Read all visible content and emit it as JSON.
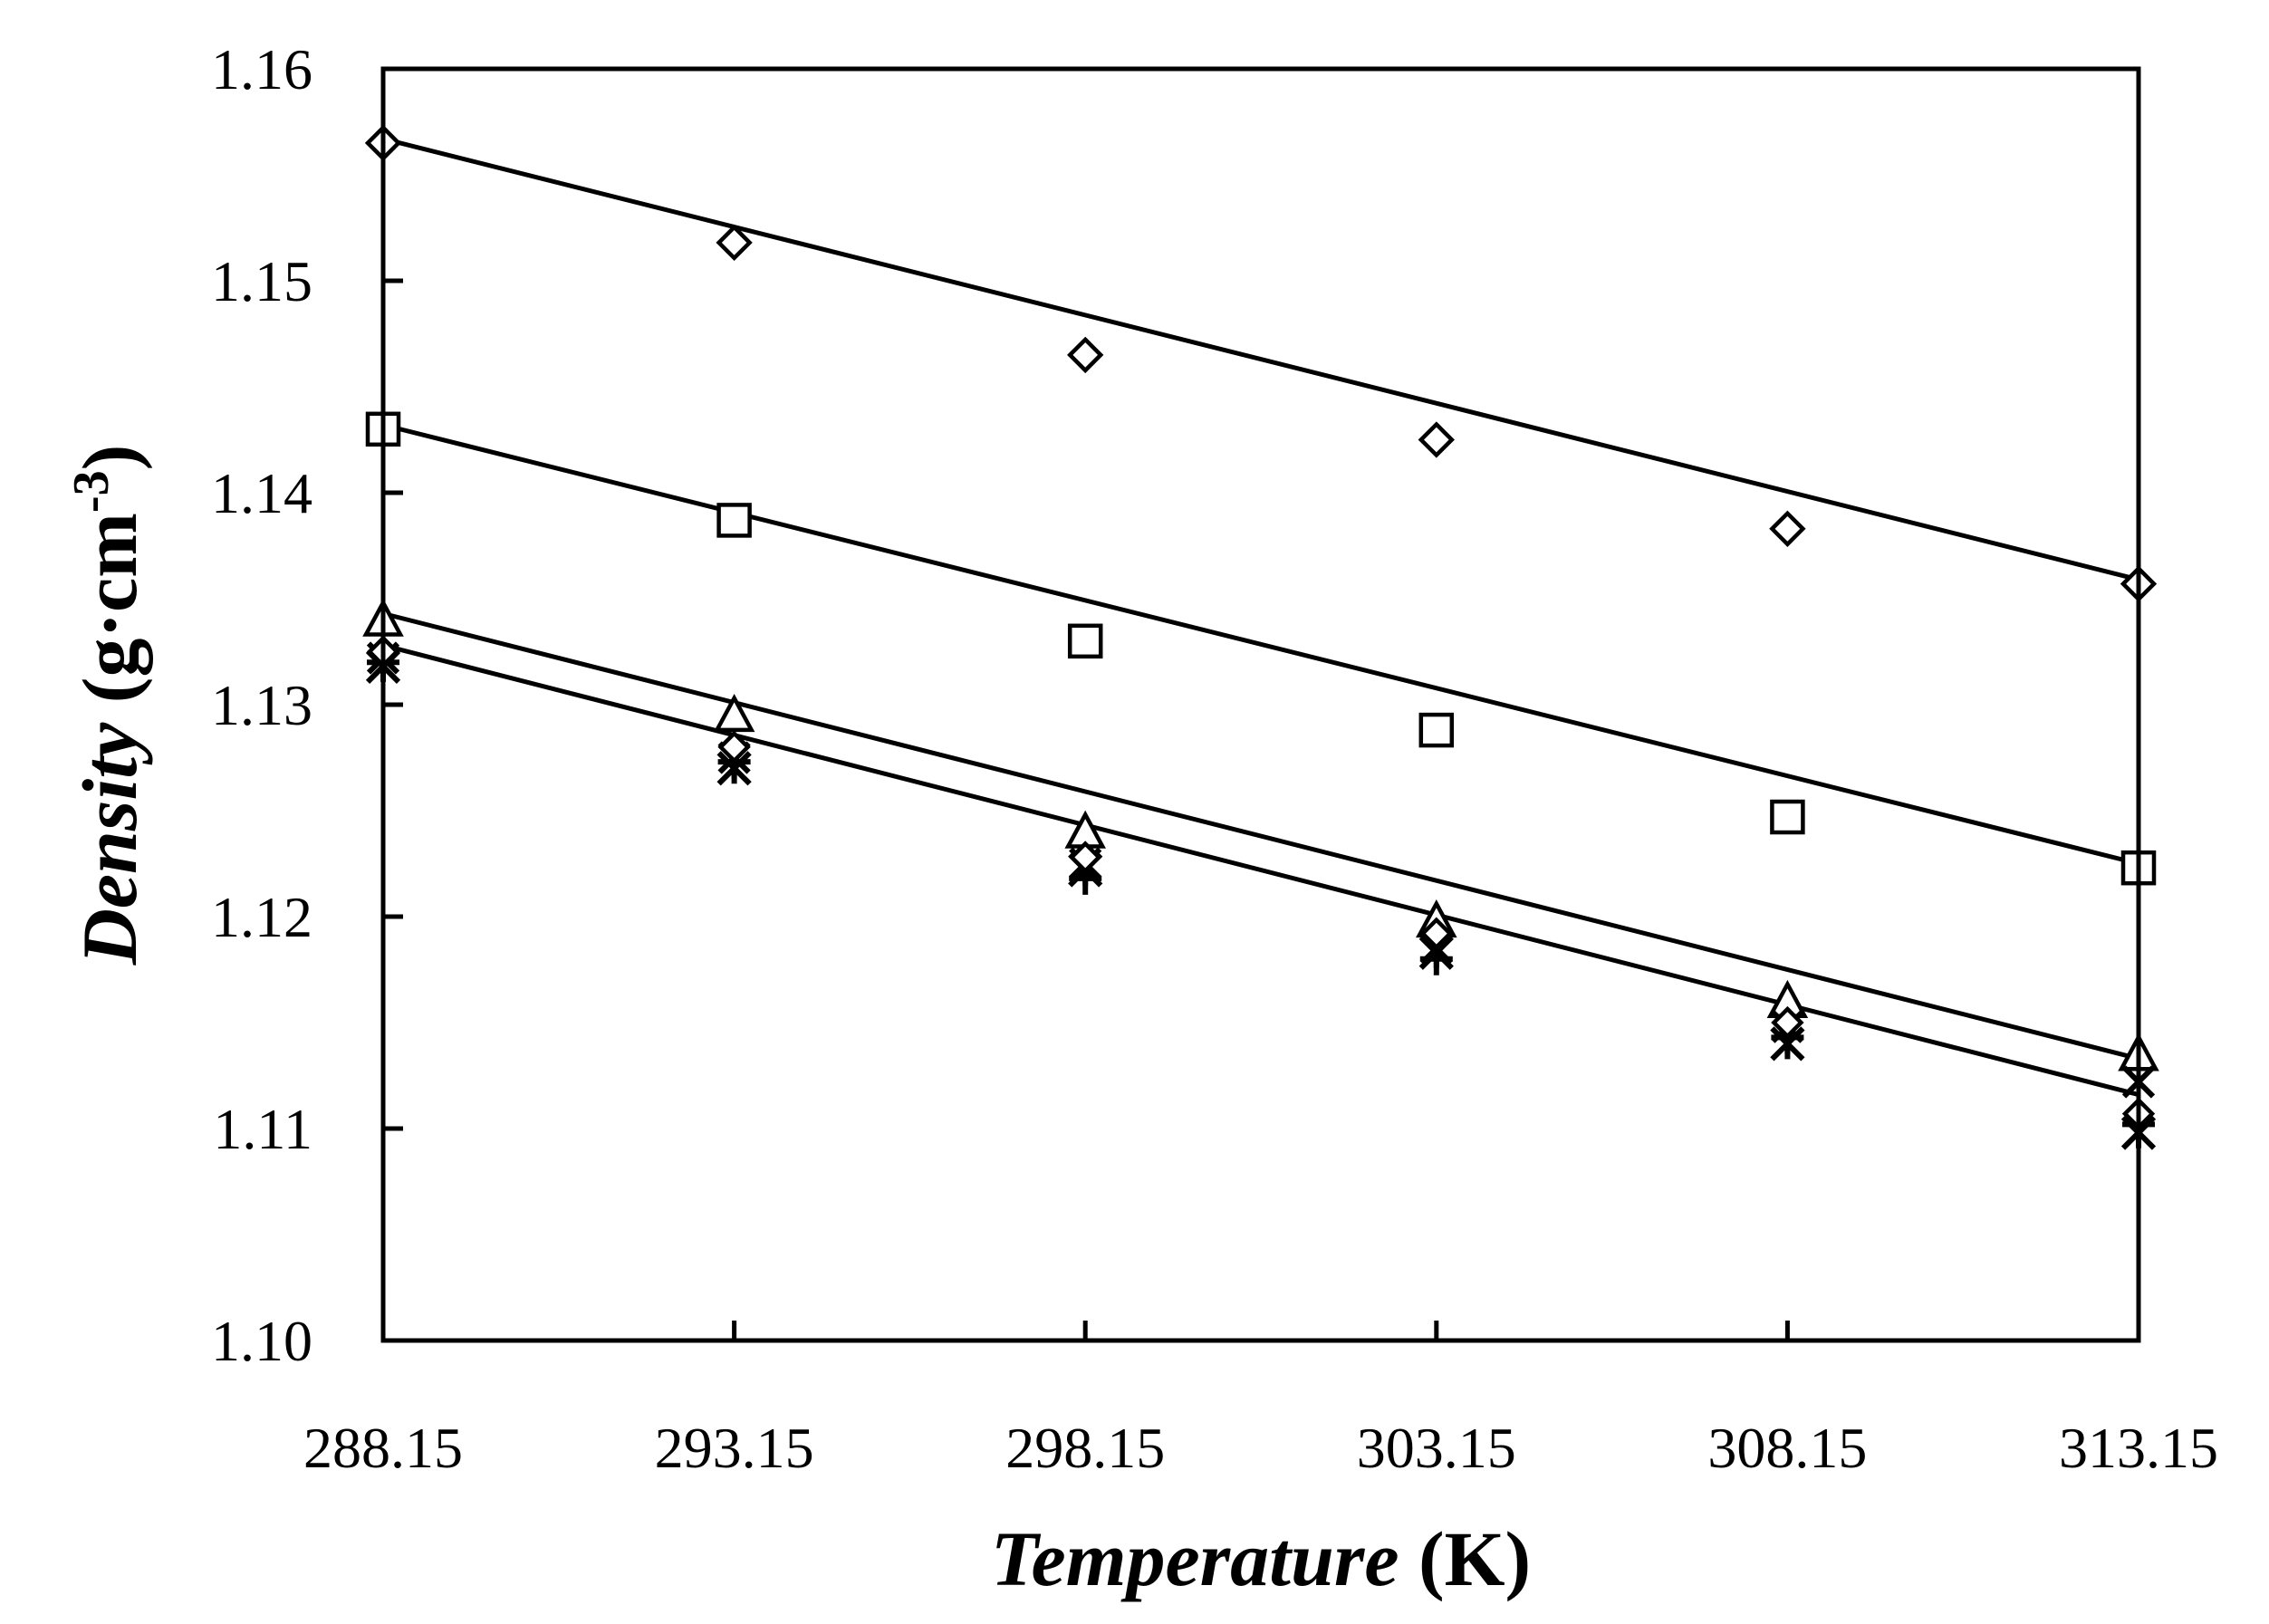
{
  "chart_data": {
    "type": "scatter",
    "title": "",
    "xlabel": {
      "italic": "Temperature",
      "normal": " (K)"
    },
    "ylabel": {
      "italic": "Density",
      "normal": " (g·cm",
      "sup": "-3",
      "close": ")"
    },
    "x": [
      288.15,
      293.15,
      298.15,
      303.15,
      308.15,
      313.15
    ],
    "x_tick_labels": [
      "288.15",
      "293.15",
      "298.15",
      "303.15",
      "308.15",
      "313.15"
    ],
    "y_tick_labels": [
      "1.10",
      "1.11",
      "1.12",
      "1.13",
      "1.14",
      "1.15",
      "1.16"
    ],
    "xlim": [
      288.15,
      313.15
    ],
    "ylim": [
      1.1,
      1.16
    ],
    "grid": false,
    "series": [
      {
        "name": "diamond series",
        "marker": "diamond",
        "values": [
          1.1565,
          1.1518,
          1.1465,
          1.1425,
          1.1383,
          1.1357
        ],
        "fit": [
          1.1567,
          1.1359
        ]
      },
      {
        "name": "square series",
        "marker": "square",
        "values": [
          1.143,
          1.1387,
          1.133,
          1.1288,
          1.1247,
          1.1223
        ],
        "fit": [
          1.1432,
          1.1225
        ]
      },
      {
        "name": "triangle series",
        "marker": "triangle",
        "values": [
          1.134,
          1.1295,
          1.124,
          1.1198,
          1.116,
          1.1135
        ],
        "fit": [
          1.1343,
          1.1133
        ]
      },
      {
        "name": "cross series",
        "marker": "cross",
        "values": [
          1.1322,
          1.1275,
          1.1225,
          1.1185,
          1.1148,
          1.1122
        ],
        "fit": [
          1.1328,
          1.1116
        ]
      },
      {
        "name": "plus series",
        "marker": "plus",
        "values": [
          1.132,
          1.1273,
          1.1218,
          1.118,
          1.1143,
          1.1102
        ]
      },
      {
        "name": "star series",
        "marker": "star",
        "values": [
          1.1318,
          1.127,
          1.1222,
          1.1183,
          1.114,
          1.1098
        ]
      },
      {
        "name": "small diamond series",
        "marker": "diamond-small",
        "values": [
          1.1325,
          1.128,
          1.1228,
          1.1192,
          1.115,
          1.1107
        ]
      }
    ]
  }
}
